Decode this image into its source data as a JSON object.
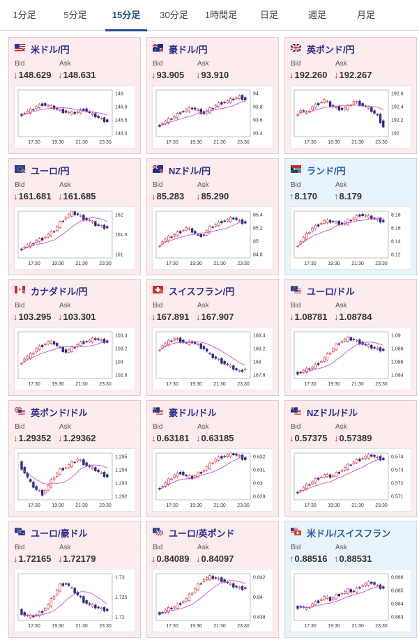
{
  "tabs": [
    "1分足",
    "5分足",
    "15分足",
    "30分足",
    "1時間足",
    "日足",
    "週足",
    "月足"
  ],
  "active_tab": 2,
  "labels": {
    "bid": "Bid",
    "ask": "Ask"
  },
  "arrows": {
    "down": "↓",
    "up": "↑"
  },
  "x_ticks": [
    "17:30",
    "19:30",
    "21:30",
    "23:30"
  ],
  "cards": [
    {
      "pair": "米ドル/円",
      "flag": "us",
      "dir": "down",
      "bid": "148.629",
      "ask": "148.631",
      "y_ticks": [
        "149",
        "148.8",
        "148.6",
        "148.4"
      ],
      "series": [
        148.66,
        148.71,
        148.74,
        148.8,
        148.84,
        148.81,
        148.78,
        148.74,
        148.72,
        148.7,
        148.72,
        148.76,
        148.7,
        148.66,
        148.61,
        148.58
      ]
    },
    {
      "pair": "豪ドル/円",
      "flag": "au",
      "dir": "down",
      "bid": "93.905",
      "ask": "93.910",
      "y_ticks": [
        "94",
        "93.8",
        "93.6",
        "93.4"
      ],
      "series": [
        93.5,
        93.55,
        93.6,
        93.65,
        93.72,
        93.75,
        93.78,
        93.74,
        93.7,
        93.76,
        93.82,
        93.86,
        93.88,
        93.92,
        93.95,
        93.91
      ]
    },
    {
      "pair": "英ポンド/円",
      "flag": "uk",
      "dir": "down",
      "bid": "192.260",
      "ask": "192.267",
      "y_ticks": [
        "192.6",
        "192.4",
        "192.2",
        "192"
      ],
      "series": [
        192.25,
        192.35,
        192.3,
        192.4,
        192.45,
        192.5,
        192.42,
        192.38,
        192.36,
        192.4,
        192.48,
        192.44,
        192.4,
        192.34,
        192.26,
        192.1
      ]
    },
    {
      "pair": "ユーロ/円",
      "flag": "eu",
      "dir": "down",
      "bid": "161.681",
      "ask": "161.685",
      "y_ticks": [
        "162",
        "161.5",
        "161"
      ],
      "series": [
        161.1,
        161.2,
        161.25,
        161.35,
        161.4,
        161.5,
        161.6,
        161.8,
        161.95,
        162.05,
        162.0,
        161.9,
        161.85,
        161.75,
        161.7,
        161.68
      ]
    },
    {
      "pair": "NZドル/円",
      "flag": "nz",
      "dir": "down",
      "bid": "85.283",
      "ask": "85.290",
      "y_ticks": [
        "85.4",
        "85.2",
        "85",
        "84.8"
      ],
      "series": [
        84.9,
        85.0,
        85.05,
        85.1,
        85.15,
        85.2,
        85.15,
        85.08,
        85.1,
        85.2,
        85.25,
        85.3,
        85.32,
        85.35,
        85.3,
        85.28
      ]
    },
    {
      "pair": "ランド/円",
      "flag": "za",
      "dir": "up",
      "bid": "8.170",
      "ask": "8.179",
      "y_ticks": [
        "8.18",
        "8.16",
        "8.14",
        "8.12"
      ],
      "series": [
        8.13,
        8.14,
        8.15,
        8.16,
        8.165,
        8.17,
        8.17,
        8.168,
        8.166,
        8.17,
        8.175,
        8.18,
        8.178,
        8.175,
        8.172,
        8.17
      ]
    },
    {
      "pair": "カナダドル/円",
      "flag": "ca",
      "dir": "down",
      "bid": "103.295",
      "ask": "103.301",
      "y_ticks": [
        "103.4",
        "103.2",
        "103",
        "102.8"
      ],
      "series": [
        102.95,
        103.05,
        103.1,
        103.2,
        103.25,
        103.3,
        103.28,
        103.2,
        103.15,
        103.2,
        103.26,
        103.3,
        103.32,
        103.35,
        103.32,
        103.3
      ]
    },
    {
      "pair": "スイスフラン/円",
      "flag": "ch",
      "dir": "down",
      "bid": "167.891",
      "ask": "167.907",
      "y_ticks": [
        "168.4",
        "168.2",
        "168",
        "167.8"
      ],
      "series": [
        168.15,
        168.25,
        168.3,
        168.35,
        168.32,
        168.28,
        168.3,
        168.25,
        168.2,
        168.1,
        168.05,
        168.0,
        167.95,
        167.9,
        167.85,
        167.9
      ]
    },
    {
      "pair": "ユーロ/ドル",
      "flag": "euus",
      "dir": "down",
      "bid": "1.08781",
      "ask": "1.08784",
      "y_ticks": [
        "1.09",
        "1.088",
        "1.086",
        "1.084"
      ],
      "series": [
        1.0842,
        1.0845,
        1.0848,
        1.0852,
        1.0858,
        1.0865,
        1.0875,
        1.0885,
        1.0892,
        1.0895,
        1.0893,
        1.0889,
        1.0885,
        1.0882,
        1.0879,
        1.0878
      ]
    },
    {
      "pair": "英ポンド/ドル",
      "flag": "ukus",
      "dir": "down",
      "bid": "1.29352",
      "ask": "1.29362",
      "y_ticks": [
        "1.295",
        "1.294",
        "1.293",
        "1.292"
      ],
      "series": [
        1.2945,
        1.2938,
        1.293,
        1.2925,
        1.2922,
        1.2928,
        1.2935,
        1.294,
        1.2942,
        1.2945,
        1.2948,
        1.2945,
        1.2942,
        1.294,
        1.2937,
        1.2935
      ]
    },
    {
      "pair": "豪ドル/ドル",
      "flag": "auus",
      "dir": "down",
      "bid": "0.63181",
      "ask": "0.63185",
      "y_ticks": [
        "0.632",
        "0.631",
        "0.63",
        "0.629"
      ],
      "series": [
        0.6295,
        0.6298,
        0.6302,
        0.6306,
        0.6308,
        0.6305,
        0.6304,
        0.6307,
        0.631,
        0.6314,
        0.6318,
        0.632,
        0.6321,
        0.6322,
        0.632,
        0.6318
      ]
    },
    {
      "pair": "NZドル/ドル",
      "flag": "nzus",
      "dir": "down",
      "bid": "0.57375",
      "ask": "0.57389",
      "y_ticks": [
        "0.574",
        "0.573",
        "0.572",
        "0.571"
      ],
      "series": [
        0.5712,
        0.5715,
        0.5718,
        0.5721,
        0.5724,
        0.5726,
        0.5725,
        0.5727,
        0.573,
        0.5733,
        0.5736,
        0.5738,
        0.574,
        0.5741,
        0.5739,
        0.5738
      ]
    },
    {
      "pair": "ユーロ/豪ドル",
      "flag": "euau",
      "dir": "down",
      "bid": "1.72165",
      "ask": "1.72179",
      "y_ticks": [
        "1.73",
        "1.725",
        "1.72"
      ],
      "series": [
        1.7215,
        1.7205,
        1.72,
        1.7205,
        1.7215,
        1.723,
        1.7255,
        1.728,
        1.7285,
        1.727,
        1.7255,
        1.724,
        1.723,
        1.7225,
        1.722,
        1.7217
      ]
    },
    {
      "pair": "ユーロ/英ポンド",
      "flag": "euuk",
      "dir": "down",
      "bid": "0.84089",
      "ask": "0.84097",
      "y_ticks": [
        "0.842",
        "0.84",
        "0.838"
      ],
      "series": [
        0.8383,
        0.8385,
        0.8388,
        0.839,
        0.8394,
        0.8398,
        0.8405,
        0.8412,
        0.8418,
        0.842,
        0.8419,
        0.8417,
        0.8414,
        0.8411,
        0.8409,
        0.8409
      ]
    },
    {
      "pair": "米ドル/スイスフラン",
      "flag": "usch",
      "dir": "up",
      "bid": "0.88516",
      "ask": "0.88531",
      "y_ticks": [
        "0.886",
        "0.885",
        "0.884",
        "0.883"
      ],
      "series": [
        0.8837,
        0.8838,
        0.8836,
        0.884,
        0.8842,
        0.8845,
        0.8843,
        0.8846,
        0.8848,
        0.885,
        0.8849,
        0.8853,
        0.8855,
        0.8856,
        0.8853,
        0.8852
      ]
    }
  ]
}
